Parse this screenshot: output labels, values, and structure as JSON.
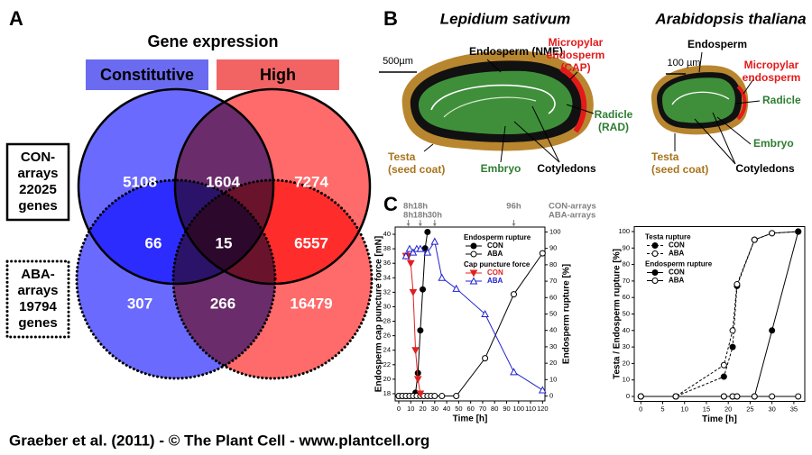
{
  "panel_labels": [
    "A",
    "B",
    "C"
  ],
  "venn": {
    "title": "Gene expression",
    "sets": [
      "Constitutive",
      "High"
    ],
    "arrays": [
      {
        "lines": [
          "CON-",
          "arrays"
        ],
        "count": 22025,
        "unit": "genes"
      },
      {
        "lines": [
          "ABA-",
          "arrays"
        ],
        "count": 19794,
        "unit": "genes"
      }
    ],
    "regions": [
      5108,
      1604,
      7274,
      66,
      15,
      6557,
      307,
      266,
      16479
    ]
  },
  "diagram": {
    "lepidium": {
      "title": "Lepidium sativum",
      "scale": "500µm",
      "endosperm": "Endosperm (NME)",
      "cap": [
        "Micropylar",
        "endosperm",
        "(CAP)"
      ],
      "radicle": [
        "Radicle",
        "(RAD)"
      ],
      "testa": [
        "Testa",
        "(seed coat)"
      ],
      "embryo": "Embryo",
      "cotyledons": "Cotyledons"
    },
    "arabidopsis": {
      "title": "Arabidopsis thaliana",
      "scale": "100 µm",
      "endosperm": "Endosperm",
      "cap": [
        "Micropylar",
        "endosperm"
      ],
      "radicle": "Radicle",
      "embryo": "Embryo",
      "testa": [
        "Testa",
        "(seed coat)"
      ],
      "cotyledons": "Cotyledons"
    }
  },
  "footer": "Graeber et al. (2011) - © The Plant Cell - www.plantcell.org",
  "chart_data": [
    {
      "type": "line",
      "x_label": "Time [h]",
      "y_label": "Endosperm cap puncture force [mN]",
      "y2_label": "Endosperm rupture [%]",
      "xlim": [
        -3,
        122
      ],
      "xticks": [
        0,
        10,
        20,
        30,
        40,
        50,
        60,
        70,
        80,
        90,
        100,
        110,
        120
      ],
      "ylim": [
        17,
        41
      ],
      "yticks": [
        18,
        20,
        22,
        24,
        26,
        28,
        30,
        32,
        34,
        36,
        38,
        40
      ],
      "y2lim": [
        -3,
        103
      ],
      "y2ticks": [
        0,
        10,
        20,
        30,
        40,
        50,
        60,
        70,
        80,
        90,
        100
      ],
      "legend": "upper right",
      "series_groups": [
        {
          "title": "Endosperm rupture",
          "series": [
            {
              "name": "CON",
              "color": "#000000",
              "marker": "circle-filled",
              "dash": false,
              "axis": "y2",
              "x": [
                0,
                3,
                6,
                9,
                12,
                14,
                16,
                18,
                20,
                22,
                24
              ],
              "values": [
                0,
                0,
                0,
                0,
                0,
                2,
                14,
                40,
                65,
                90,
                100
              ]
            },
            {
              "name": "ABA",
              "color": "#000000",
              "marker": "circle-open",
              "dash": false,
              "axis": "y2",
              "x": [
                0,
                3,
                6,
                9,
                12,
                15,
                18,
                21,
                24,
                27,
                30,
                36,
                48,
                72,
                96,
                120
              ],
              "values": [
                0,
                0,
                0,
                0,
                0,
                0,
                0,
                0,
                0,
                0,
                0,
                0,
                0,
                23,
                62,
                87
              ]
            }
          ]
        },
        {
          "title": "Cap puncture force",
          "series": [
            {
              "name": "CON",
              "color": "#e02020",
              "marker": "triangle-down",
              "dash": false,
              "axis": "y",
              "x": [
                6,
                8,
                10,
                12,
                14,
                16,
                18
              ],
              "values": [
                37,
                37,
                36,
                32,
                24,
                20,
                18
              ]
            },
            {
              "name": "ABA",
              "color": "#2020d0",
              "marker": "triangle-up",
              "dash": false,
              "axis": "y",
              "x": [
                6,
                9,
                12,
                15,
                18,
                24,
                30,
                36,
                48,
                72,
                96,
                120
              ],
              "values": [
                37,
                38,
                37.5,
                38,
                38,
                37.5,
                39,
                34,
                32.5,
                29,
                21,
                18.5
              ]
            }
          ]
        }
      ],
      "annotations": [
        {
          "x": 8,
          "top": "8h",
          "bottom": "8h"
        },
        {
          "x": 18,
          "top": "18h",
          "bottom": "18h"
        },
        {
          "x": 30,
          "bottom": "30h"
        },
        {
          "x": 96,
          "top": "96h"
        }
      ],
      "annotation_rows": [
        "CON-arrays",
        "ABA-arrays"
      ]
    },
    {
      "type": "line",
      "x_label": "Time [h]",
      "y_label": "Testa / Endosperm rupture [%]",
      "xlim": [
        -1.5,
        37.5
      ],
      "xticks": [
        0,
        5,
        10,
        15,
        20,
        25,
        30,
        35
      ],
      "ylim": [
        -3,
        103
      ],
      "yticks": [
        0,
        10,
        20,
        30,
        40,
        50,
        60,
        70,
        80,
        90,
        100
      ],
      "legend": "upper left",
      "series_groups": [
        {
          "title": "Testa rupture",
          "series": [
            {
              "name": "CON",
              "color": "#000000",
              "marker": "circle-filled",
              "dash": true,
              "axis": "y",
              "x": [
                0,
                8,
                19,
                21,
                22,
                26,
                30,
                36
              ],
              "values": [
                0,
                0,
                12,
                30,
                67,
                95,
                99,
                100
              ]
            },
            {
              "name": "ABA",
              "color": "#000000",
              "marker": "circle-open",
              "dash": true,
              "axis": "y",
              "x": [
                0,
                8,
                19,
                21,
                22,
                26,
                30,
                36
              ],
              "values": [
                0,
                0,
                19,
                40,
                68,
                95,
                99,
                100
              ]
            }
          ]
        },
        {
          "title": "Endosperm rupture",
          "series": [
            {
              "name": "CON",
              "color": "#000000",
              "marker": "circle-filled",
              "dash": false,
              "axis": "y",
              "x": [
                0,
                8,
                19,
                21,
                22,
                26,
                30,
                36
              ],
              "values": [
                0,
                0,
                0,
                0,
                0,
                0,
                40,
                100
              ]
            },
            {
              "name": "ABA",
              "color": "#000000",
              "marker": "circle-open",
              "dash": false,
              "axis": "y",
              "x": [
                0,
                8,
                19,
                21,
                22,
                26,
                30,
                36
              ],
              "values": [
                0,
                0,
                0,
                0,
                0,
                0,
                0,
                0
              ]
            }
          ]
        }
      ]
    }
  ]
}
